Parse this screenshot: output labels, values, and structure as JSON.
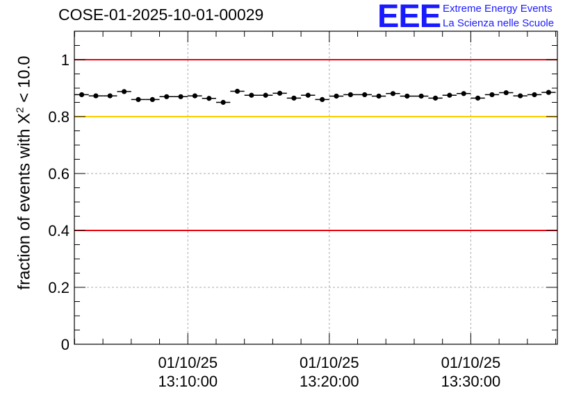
{
  "run_title": "COSE-01-2025-10-01-00029",
  "logo": {
    "mark": "EEE",
    "line1": "Extreme Energy Events",
    "line2": "La Scienza nelle Scuole"
  },
  "colors": {
    "limit_red": "#e8000b",
    "limit_yellow": "#ffcc00",
    "markers": "#000000",
    "logo_blue": "#1a1aff"
  },
  "chart_data": {
    "type": "scatter",
    "title": "COSE-01-2025-10-01-00029",
    "ylabel_prefix": "fraction of events with X",
    "ylabel_sup": "2",
    "ylabel_suffix": " < 10.0",
    "xlabel": "",
    "ylim": [
      0,
      1.1
    ],
    "xlim_minutes": [
      1.98,
      36.12
    ],
    "y_ticks": [
      {
        "value": 0,
        "label": "0"
      },
      {
        "value": 0.2,
        "label": "0.2"
      },
      {
        "value": 0.4,
        "label": "0.4"
      },
      {
        "value": 0.6,
        "label": "0.6"
      },
      {
        "value": 0.8,
        "label": "0.8"
      },
      {
        "value": 1,
        "label": "1"
      }
    ],
    "x_ticks": [
      {
        "minute": 10,
        "date": "01/10/25",
        "time": "13:10:00"
      },
      {
        "minute": 20,
        "date": "01/10/25",
        "time": "13:20:00"
      },
      {
        "minute": 30,
        "date": "01/10/25",
        "time": "13:30:00"
      }
    ],
    "grid": true,
    "reference_lines": [
      {
        "value": 1.0,
        "color": "red"
      },
      {
        "value": 0.8,
        "color": "yellow"
      },
      {
        "value": 0.4,
        "color": "red"
      }
    ],
    "x_minutes": [
      2.5,
      3.5,
      4.5,
      5.5,
      6.5,
      7.5,
      8.5,
      9.5,
      10.5,
      11.5,
      12.5,
      13.5,
      14.5,
      15.5,
      16.5,
      17.5,
      18.5,
      19.5,
      20.5,
      21.5,
      22.5,
      23.5,
      24.5,
      25.5,
      26.5,
      27.5,
      28.5,
      29.5,
      30.5,
      31.5,
      32.5,
      33.5,
      34.5,
      35.5
    ],
    "values": [
      0.877,
      0.873,
      0.873,
      0.888,
      0.86,
      0.86,
      0.87,
      0.87,
      0.873,
      0.864,
      0.85,
      0.889,
      0.875,
      0.875,
      0.882,
      0.865,
      0.875,
      0.86,
      0.872,
      0.877,
      0.877,
      0.872,
      0.881,
      0.872,
      0.872,
      0.865,
      0.875,
      0.881,
      0.865,
      0.877,
      0.884,
      0.873,
      0.877,
      0.885
    ]
  }
}
